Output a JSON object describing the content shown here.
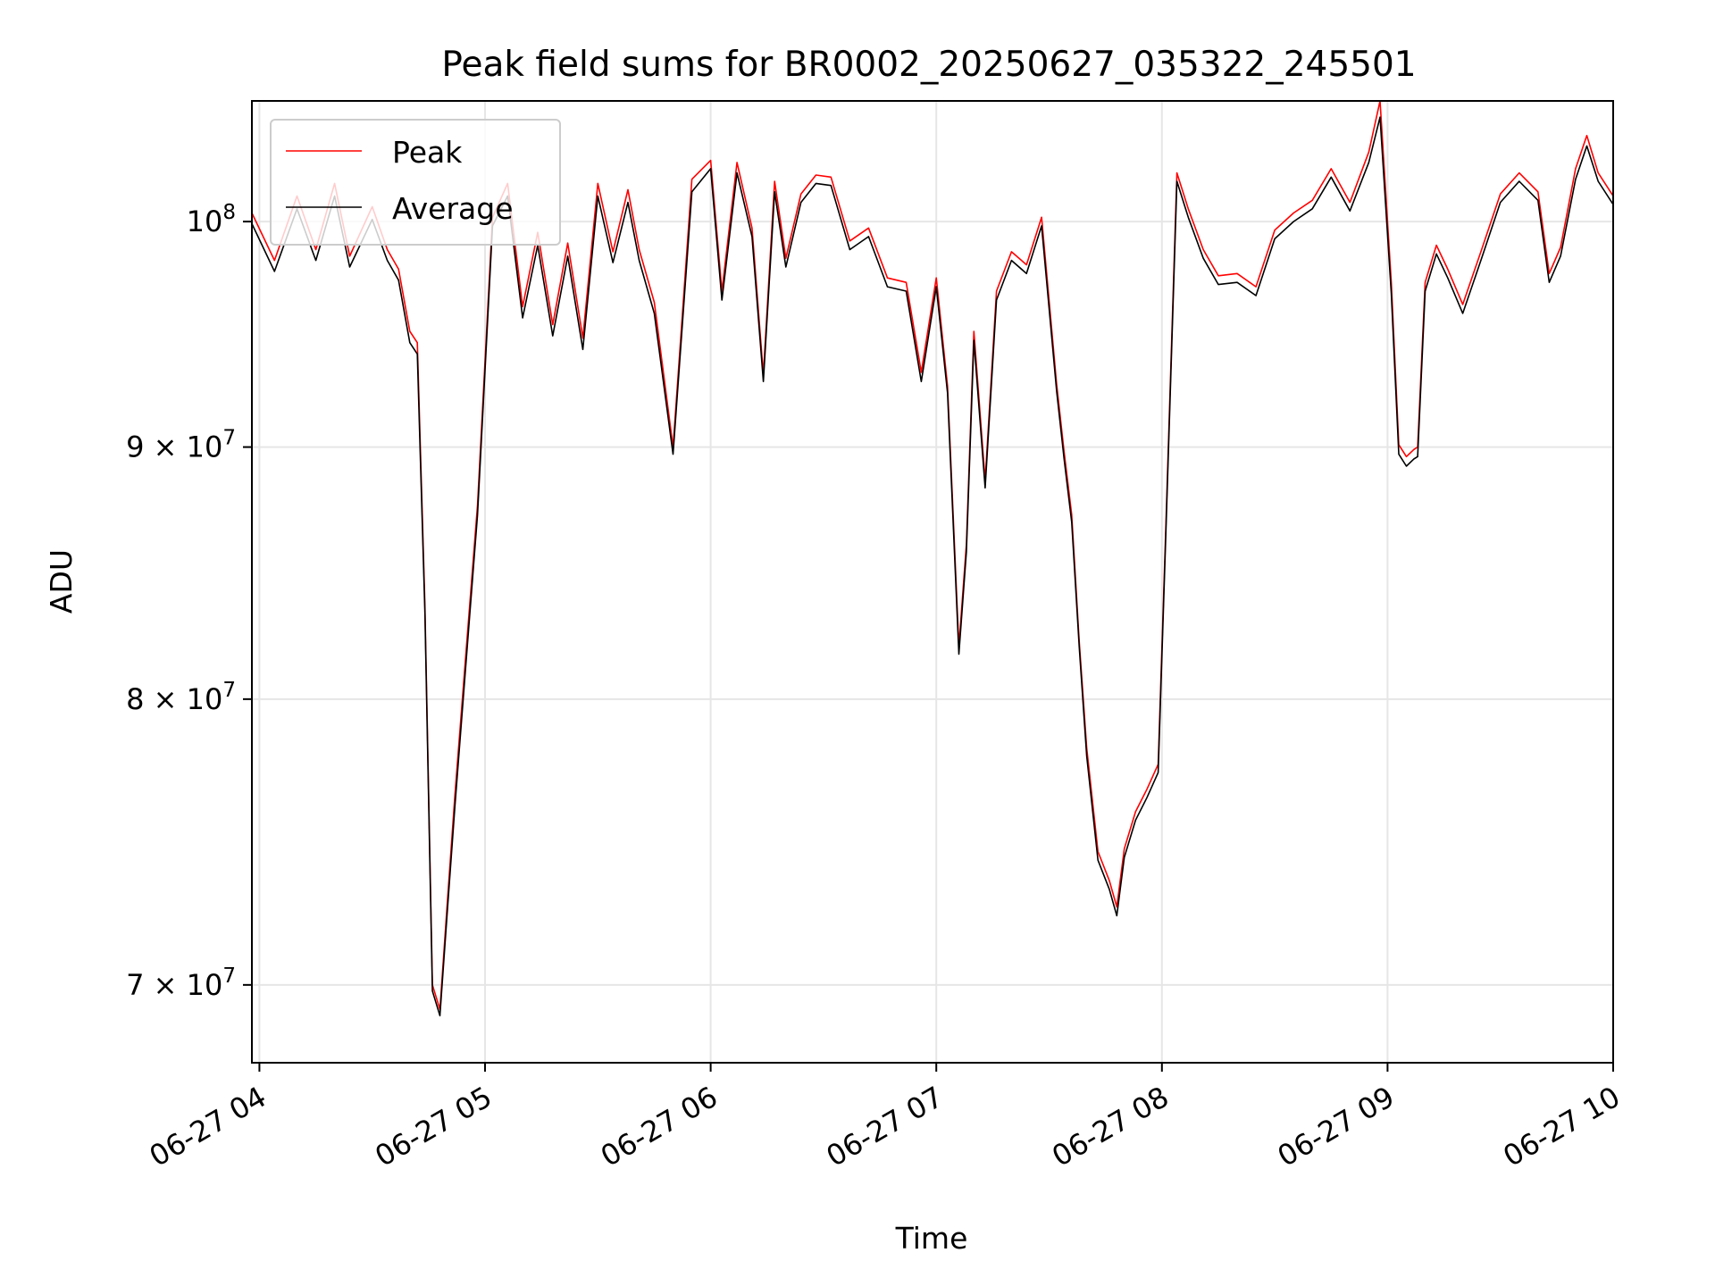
{
  "chart_data": {
    "type": "line",
    "title": "Peak field sums for BR0002_20250627_035322_245501",
    "xlabel": "Time",
    "ylabel": "ADU",
    "y_scale": "log",
    "ylim": [
      67500000,
      105800000
    ],
    "xlim": [
      "06-27 03:58",
      "06-27 10:00"
    ],
    "grid": true,
    "legend_position": "upper left",
    "x_ticks": [
      {
        "value": "06-27 04:00",
        "label": "06-27 04"
      },
      {
        "value": "06-27 05:00",
        "label": "06-27 05"
      },
      {
        "value": "06-27 06:00",
        "label": "06-27 06"
      },
      {
        "value": "06-27 07:00",
        "label": "06-27 07"
      },
      {
        "value": "06-27 08:00",
        "label": "06-27 08"
      },
      {
        "value": "06-27 09:00",
        "label": "06-27 09"
      },
      {
        "value": "06-27 10:00",
        "label": "06-27 10"
      }
    ],
    "y_ticks": [
      {
        "value": 70000000,
        "mantissa": "7",
        "base": "10",
        "exponent": "7"
      },
      {
        "value": 80000000,
        "mantissa": "8",
        "base": "10",
        "exponent": "7"
      },
      {
        "value": 90000000,
        "mantissa": "9",
        "base": "10",
        "exponent": "7"
      },
      {
        "value": 100000000,
        "mantissa": "",
        "base": "10",
        "exponent": "8"
      }
    ],
    "x": [
      "06-27 03:58",
      "06-27 04:04",
      "06-27 04:10",
      "06-27 04:15",
      "06-27 04:20",
      "06-27 04:24",
      "06-27 04:30",
      "06-27 04:34",
      "06-27 04:37",
      "06-27 04:40",
      "06-27 04:42",
      "06-27 04:44",
      "06-27 04:46",
      "06-27 04:48",
      "06-27 04:50",
      "06-27 04:52",
      "06-27 04:55",
      "06-27 04:58",
      "06-27 05:02",
      "06-27 05:06",
      "06-27 05:10",
      "06-27 05:14",
      "06-27 05:18",
      "06-27 05:22",
      "06-27 05:26",
      "06-27 05:30",
      "06-27 05:34",
      "06-27 05:38",
      "06-27 05:41",
      "06-27 05:45",
      "06-27 05:50",
      "06-27 05:55",
      "06-27 06:00",
      "06-27 06:03",
      "06-27 06:07",
      "06-27 06:11",
      "06-27 06:14",
      "06-27 06:17",
      "06-27 06:20",
      "06-27 06:24",
      "06-27 06:28",
      "06-27 06:32",
      "06-27 06:37",
      "06-27 06:42",
      "06-27 06:47",
      "06-27 06:52",
      "06-27 06:56",
      "06-27 07:00",
      "06-27 07:03",
      "06-27 07:06",
      "06-27 07:08",
      "06-27 07:10",
      "06-27 07:13",
      "06-27 07:16",
      "06-27 07:20",
      "06-27 07:24",
      "06-27 07:28",
      "06-27 07:32",
      "06-27 07:34",
      "06-27 07:36",
      "06-27 07:38",
      "06-27 07:40",
      "06-27 07:43",
      "06-27 07:46",
      "06-27 07:48",
      "06-27 07:50",
      "06-27 07:53",
      "06-27 07:56",
      "06-27 07:59",
      "06-27 08:01",
      "06-27 08:04",
      "06-27 08:07",
      "06-27 08:11",
      "06-27 08:15",
      "06-27 08:20",
      "06-27 08:25",
      "06-27 08:30",
      "06-27 08:35",
      "06-27 08:40",
      "06-27 08:45",
      "06-27 08:50",
      "06-27 08:55",
      "06-27 08:58",
      "06-27 09:01",
      "06-27 09:03",
      "06-27 09:05",
      "06-27 09:07",
      "06-27 09:08",
      "06-27 09:10",
      "06-27 09:13",
      "06-27 09:16",
      "06-27 09:20",
      "06-27 09:25",
      "06-27 09:30",
      "06-27 09:35",
      "06-27 09:40",
      "06-27 09:43",
      "06-27 09:46",
      "06-27 09:50",
      "06-27 09:53",
      "06-27 09:56",
      "06-27 10:00"
    ],
    "series": [
      {
        "name": "Peak",
        "color": "#ff0000",
        "values": [
          100400000,
          98200000,
          101200000,
          98700000,
          101800000,
          98400000,
          100700000,
          98700000,
          97800000,
          95000000,
          94500000,
          83600000,
          70000000,
          69200000,
          72800000,
          76500000,
          81900000,
          87600000,
          100200000,
          101800000,
          96100000,
          99500000,
          95300000,
          99000000,
          94700000,
          101800000,
          98600000,
          101500000,
          98700000,
          96300000,
          90000000,
          102000000,
          102900000,
          96800000,
          102800000,
          99700000,
          93100000,
          101900000,
          98300000,
          101300000,
          102200000,
          102100000,
          99100000,
          99700000,
          97400000,
          97200000,
          93200000,
          97400000,
          92600000,
          82000000,
          86000000,
          95000000,
          88600000,
          96800000,
          98600000,
          98000000,
          100200000,
          92700000,
          89800000,
          87200000,
          82200000,
          78200000,
          74500000,
          73500000,
          72600000,
          74600000,
          75900000,
          76700000,
          77600000,
          86500000,
          102300000,
          100600000,
          98700000,
          97500000,
          97600000,
          97000000,
          99600000,
          100400000,
          101000000,
          102500000,
          100900000,
          103300000,
          105800000,
          97200000,
          90100000,
          89600000,
          89900000,
          90000000,
          97200000,
          98900000,
          97800000,
          96200000,
          98700000,
          101300000,
          102300000,
          101400000,
          97600000,
          98800000,
          102500000,
          104100000,
          102300000,
          101200000
        ]
      },
      {
        "name": "Average",
        "color": "#000000",
        "values": [
          99900000,
          97700000,
          100600000,
          98200000,
          101200000,
          97900000,
          100100000,
          98200000,
          97300000,
          94500000,
          94000000,
          83300000,
          69800000,
          69000000,
          72500000,
          76100000,
          81500000,
          87200000,
          99800000,
          101200000,
          95600000,
          98900000,
          94800000,
          98400000,
          94200000,
          101200000,
          98100000,
          100900000,
          98200000,
          95800000,
          89700000,
          101400000,
          102500000,
          96400000,
          102300000,
          99300000,
          92800000,
          101400000,
          97900000,
          100900000,
          101800000,
          101700000,
          98700000,
          99300000,
          97000000,
          96800000,
          92800000,
          97000000,
          92300000,
          81700000,
          85700000,
          94600000,
          88300000,
          96400000,
          98200000,
          97600000,
          99800000,
          92400000,
          89500000,
          86900000,
          82000000,
          77900000,
          74200000,
          73200000,
          72300000,
          74300000,
          75600000,
          76400000,
          77300000,
          86200000,
          101900000,
          100200000,
          98300000,
          97100000,
          97200000,
          96600000,
          99200000,
          100000000,
          100600000,
          102100000,
          100500000,
          102800000,
          105000000,
          96700000,
          89700000,
          89200000,
          89500000,
          89600000,
          96800000,
          98500000,
          97400000,
          95800000,
          98300000,
          100900000,
          101900000,
          101000000,
          97200000,
          98400000,
          102000000,
          103600000,
          101900000,
          100800000
        ]
      }
    ]
  }
}
